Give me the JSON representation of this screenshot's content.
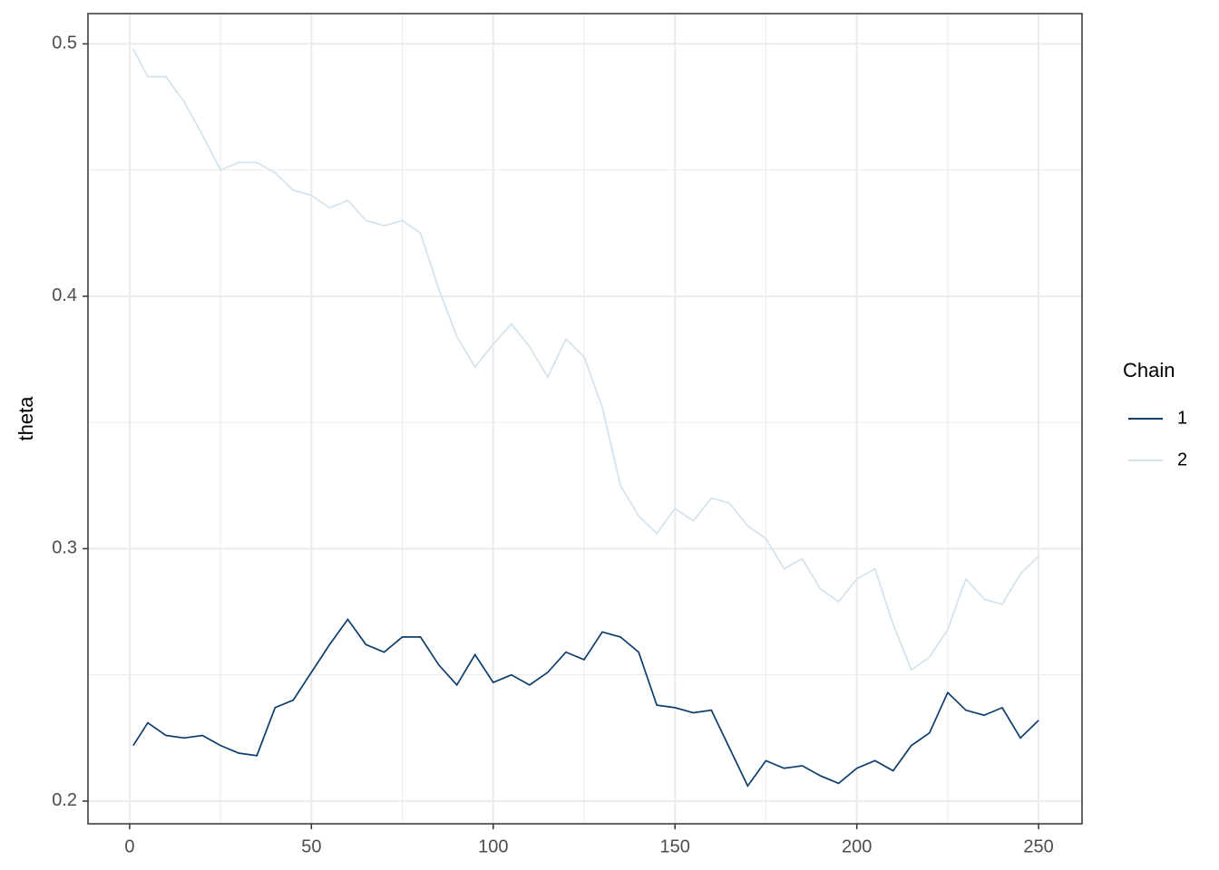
{
  "chart_data": {
    "type": "line",
    "y_label": "theta",
    "legend_title": "Chain",
    "legend_position": "right",
    "grid": true,
    "x": [
      1,
      5,
      10,
      15,
      20,
      25,
      30,
      35,
      40,
      45,
      50,
      55,
      60,
      65,
      70,
      75,
      80,
      85,
      90,
      95,
      100,
      105,
      110,
      115,
      120,
      125,
      130,
      135,
      140,
      145,
      150,
      155,
      160,
      165,
      170,
      175,
      180,
      185,
      190,
      195,
      200,
      205,
      210,
      215,
      220,
      225,
      230,
      235,
      240,
      245,
      250
    ],
    "xlim": [
      -11.45,
      261.95
    ],
    "xticks": [
      0,
      50,
      100,
      150,
      200,
      250
    ],
    "ylim": [
      0.191,
      0.512
    ],
    "yticks": [
      0.2,
      0.3,
      0.4,
      0.5
    ],
    "series": [
      {
        "name": "1",
        "color": "#0b3c6b",
        "values": [
          0.222,
          0.231,
          0.226,
          0.225,
          0.226,
          0.222,
          0.219,
          0.218,
          0.237,
          0.24,
          0.251,
          0.262,
          0.272,
          0.262,
          0.259,
          0.265,
          0.265,
          0.254,
          0.246,
          0.258,
          0.247,
          0.25,
          0.246,
          0.251,
          0.259,
          0.256,
          0.267,
          0.265,
          0.259,
          0.238,
          0.237,
          0.235,
          0.236,
          0.221,
          0.206,
          0.216,
          0.213,
          0.214,
          0.21,
          0.207,
          0.213,
          0.216,
          0.212,
          0.222,
          0.227,
          0.243,
          0.236,
          0.234,
          0.237,
          0.225,
          0.232
        ]
      },
      {
        "name": "2",
        "color": "#d3e2ed",
        "values": [
          0.498,
          0.487,
          0.487,
          0.477,
          0.464,
          0.45,
          0.453,
          0.453,
          0.449,
          0.442,
          0.44,
          0.435,
          0.438,
          0.43,
          0.428,
          0.43,
          0.425,
          0.403,
          0.384,
          0.372,
          0.381,
          0.389,
          0.38,
          0.368,
          0.383,
          0.376,
          0.356,
          0.325,
          0.313,
          0.306,
          0.316,
          0.311,
          0.32,
          0.318,
          0.309,
          0.304,
          0.292,
          0.296,
          0.284,
          0.279,
          0.288,
          0.292,
          0.27,
          0.252,
          0.257,
          0.268,
          0.288,
          0.28,
          0.278,
          0.29,
          0.297
        ]
      }
    ]
  }
}
